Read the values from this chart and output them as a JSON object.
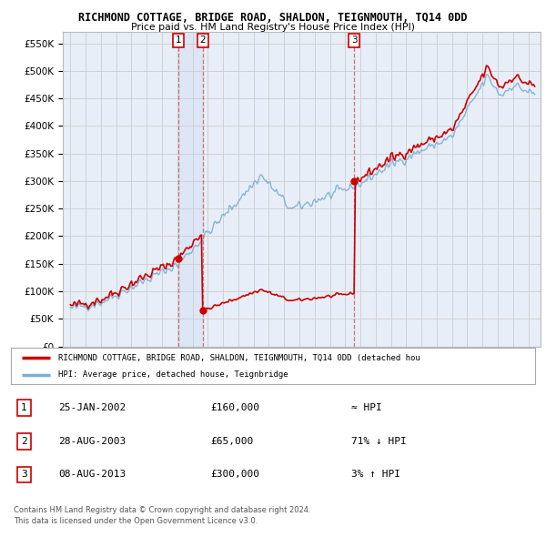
{
  "title": "RICHMOND COTTAGE, BRIDGE ROAD, SHALDON, TEIGNMOUTH, TQ14 0DD",
  "subtitle": "Price paid vs. HM Land Registry's House Price Index (HPI)",
  "background_color": "#ffffff",
  "plot_background": "#e8eef8",
  "ylim": [
    0,
    570000
  ],
  "yticks": [
    0,
    50000,
    100000,
    150000,
    200000,
    250000,
    300000,
    350000,
    400000,
    450000,
    500000,
    550000
  ],
  "ytick_labels": [
    "£0",
    "£50K",
    "£100K",
    "£150K",
    "£200K",
    "£250K",
    "£300K",
    "£350K",
    "£400K",
    "£450K",
    "£500K",
    "£550K"
  ],
  "hpi_color": "#7bafd4",
  "price_color": "#cc0000",
  "sale_marker_color": "#cc0000",
  "vline_color": "#cc6666",
  "grid_color": "#cccccc",
  "highlight_color": "#d0e0f0",
  "sale_points": [
    {
      "date_num": 2002.07,
      "price": 160000,
      "label": "1"
    },
    {
      "date_num": 2003.66,
      "price": 65000,
      "label": "2"
    },
    {
      "date_num": 2013.6,
      "price": 300000,
      "label": "3"
    }
  ],
  "table_rows": [
    {
      "num": "1",
      "date": "25-JAN-2002",
      "price": "£160,000",
      "hpi_rel": "≈ HPI"
    },
    {
      "num": "2",
      "date": "28-AUG-2003",
      "price": "£65,000",
      "hpi_rel": "71% ↓ HPI"
    },
    {
      "num": "3",
      "date": "08-AUG-2013",
      "price": "£300,000",
      "hpi_rel": "3% ↑ HPI"
    }
  ],
  "legend_label_red": "RICHMOND COTTAGE, BRIDGE ROAD, SHALDON, TEIGNMOUTH, TQ14 0DD (detached hou",
  "legend_label_blue": "HPI: Average price, detached house, Teignbridge",
  "footer1": "Contains HM Land Registry data © Crown copyright and database right 2024.",
  "footer2": "This data is licensed under the Open Government Licence v3.0."
}
